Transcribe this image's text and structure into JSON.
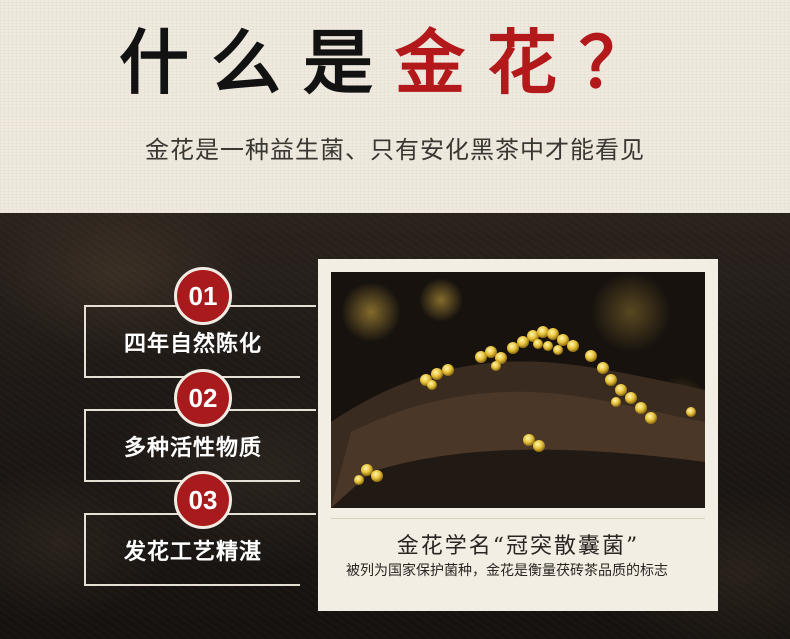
{
  "header": {
    "title_black": "什么是",
    "title_red": "金花？",
    "subtitle": "金花是一种益生菌、只有安化黑茶中才能看见"
  },
  "features": [
    {
      "number": "01",
      "label": "四年自然陈化"
    },
    {
      "number": "02",
      "label": "多种活性物质"
    },
    {
      "number": "03",
      "label": "发花工艺精湛"
    }
  ],
  "photo_card": {
    "image": "golden-flower-fungus-photo",
    "caption_title": "金花学名“冠突散囊菌”",
    "caption_text": "被列为国家保护菌种，金花是衡量茯砖茶品质的标志"
  },
  "colors": {
    "accent_red": "#b3181b",
    "badge_red": "#a81a1c",
    "header_bg": "#efe9de",
    "dark_bg": "#1d1815",
    "frame_bg": "#f3eee3"
  }
}
